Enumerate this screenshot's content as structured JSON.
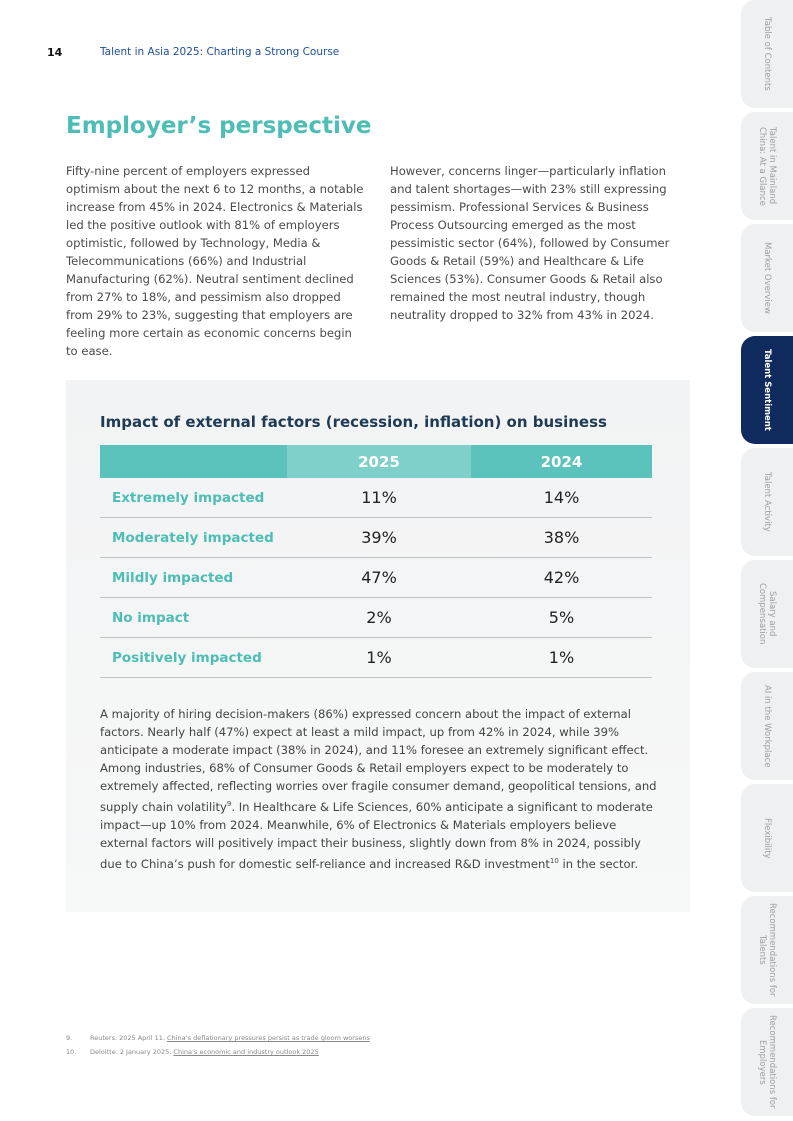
{
  "header": {
    "page_number": "14",
    "title": "Talent in Asia 2025: Charting a Strong Course"
  },
  "heading": "Employer’s perspective",
  "columns": [
    "Fifty-nine percent of employers expressed optimism about the next 6 to 12 months, a notable increase from 45% in 2024. Electronics & Materials led the positive outlook with 81% of employers optimistic, followed by Technology, Media & Telecommunications (66%) and Industrial Manufacturing (62%). Neutral sentiment declined from 27% to 18%, and pessimism also dropped from 29% to 23%, suggesting that employers are feeling more certain as economic concerns begin to ease.",
    "However, concerns linger—particularly inflation and talent shortages—with 23% still expressing pessimism. Professional Services & Business Process Outsourcing emerged as the most pessimistic sector (64%), followed by Consumer Goods & Retail (59%) and Healthcare & Life Sciences (53%). Consumer Goods & Retail also remained the most neutral industry, though neutrality dropped to 32% from 43% in 2024."
  ],
  "table": {
    "title": "Impact of external factors (recession, inflation) on business",
    "columns": [
      "2025",
      "2024"
    ],
    "rows": [
      [
        "Extremely impacted",
        "11%",
        "14%"
      ],
      [
        "Moderately impacted",
        "39%",
        "38%"
      ],
      [
        "Mildly impacted",
        "47%",
        "42%"
      ],
      [
        "No impact",
        "2%",
        "5%"
      ],
      [
        "Positively impacted",
        "1%",
        "1%"
      ]
    ]
  },
  "box_text": [
    "A majority of hiring decision-makers (86%) expressed concern about the impact of external factors. Nearly half (47%) expect at least a mild impact, up from 42% in 2024, while 39% anticipate a moderate impact (38% in 2024), and 11% foresee an extremely significant effect. Among industries, 68% of Consumer Goods & Retail employers expect to be moderately to extremely affected, reflecting worries over fragile consumer demand, geopolitical tensions, and supply chain volatility",
    "9",
    ". In Healthcare & Life Sciences, 60% anticipate a significant to moderate impact—up 10% from 2024. Meanwhile, 6% of Electronics & Materials employers believe external factors will positively impact their business, slightly down from 8% in 2024, possibly due to China’s push for domestic self-reliance and increased R&D investment",
    "10",
    " in the sector."
  ],
  "footnotes": [
    {
      "number": "9.",
      "source": "Reuters. 2025 April 11.",
      "link": "China’s deflationary pressures persist as trade gloom worsens"
    },
    {
      "number": "10.",
      "source": "Deloitte. 2 January 2025.",
      "link": "China’s economic and industry outlook 2025"
    }
  ],
  "side_tabs": {
    "active": 3,
    "labels": [
      "Table of Contents",
      "Talent in Mainland China: At a Glance",
      "Market Overview",
      "Talent Sentiment",
      "Talent Activity",
      "Salary and Compensation",
      "AI in the Workplace",
      "Flexibility",
      "Recommendations for Talents",
      "Recommendations for Employers"
    ]
  }
}
